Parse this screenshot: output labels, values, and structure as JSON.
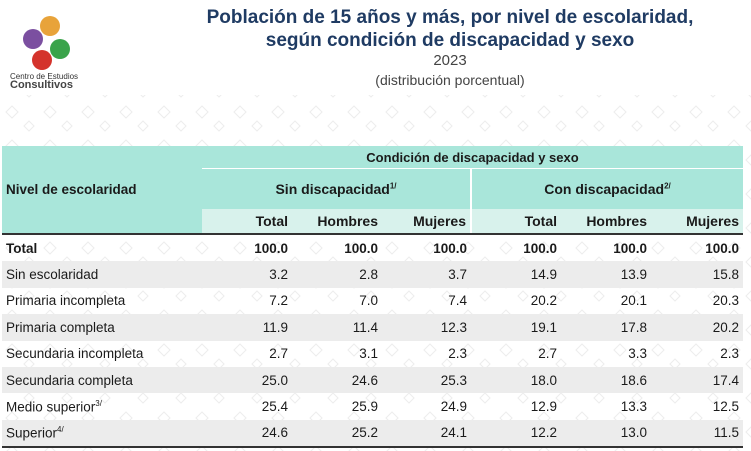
{
  "header": {
    "logo_line1": "Centro de Estudios",
    "logo_line2": "Consultivos",
    "title_line1": "Población de 15 años y más, por nivel de escolaridad,",
    "title_line2": "según condición de discapacidad y sexo",
    "year": "2023",
    "subtitle": "(distribución porcentual)"
  },
  "colors": {
    "title": "#1f3b63",
    "header_bg": "#a9e6da",
    "subheader_bg": "#d8f2ec",
    "stripe": "#ececec",
    "logo_purple": "#7b4fa0",
    "logo_orange": "#e8a33a",
    "logo_green": "#3aa34a",
    "logo_red": "#d4332c"
  },
  "table": {
    "nivel_header": "Nivel de escolaridad",
    "group_header": "Condición de discapacidad y sexo",
    "sin_label": "Sin discapacidad",
    "sin_note": "1/",
    "con_label": "Con discapacidad",
    "con_note": "2/",
    "col_total": "Total",
    "col_hombres": "Hombres",
    "col_mujeres": "Mujeres",
    "rows": [
      {
        "label": "Total",
        "note": "",
        "v": [
          "100.0",
          "100.0",
          "100.0",
          "100.0",
          "100.0",
          "100.0"
        ]
      },
      {
        "label": "Sin escolaridad",
        "note": "",
        "v": [
          "3.2",
          "2.8",
          "3.7",
          "14.9",
          "13.9",
          "15.8"
        ]
      },
      {
        "label": "Primaria incompleta",
        "note": "",
        "v": [
          "7.2",
          "7.0",
          "7.4",
          "20.2",
          "20.1",
          "20.3"
        ]
      },
      {
        "label": "Primaria completa",
        "note": "",
        "v": [
          "11.9",
          "11.4",
          "12.3",
          "19.1",
          "17.8",
          "20.2"
        ]
      },
      {
        "label": "Secundaria incompleta",
        "note": "",
        "v": [
          "2.7",
          "3.1",
          "2.3",
          "2.7",
          "3.3",
          "2.3"
        ]
      },
      {
        "label": "Secundaria completa",
        "note": "",
        "v": [
          "25.0",
          "24.6",
          "25.3",
          "18.0",
          "18.6",
          "17.4"
        ]
      },
      {
        "label": "Medio superior",
        "note": "3/",
        "v": [
          "25.4",
          "25.9",
          "24.9",
          "12.9",
          "13.3",
          "12.5"
        ]
      },
      {
        "label": "Superior",
        "note": "4/",
        "v": [
          "24.6",
          "25.2",
          "24.1",
          "12.2",
          "13.0",
          "11.5"
        ]
      }
    ]
  }
}
